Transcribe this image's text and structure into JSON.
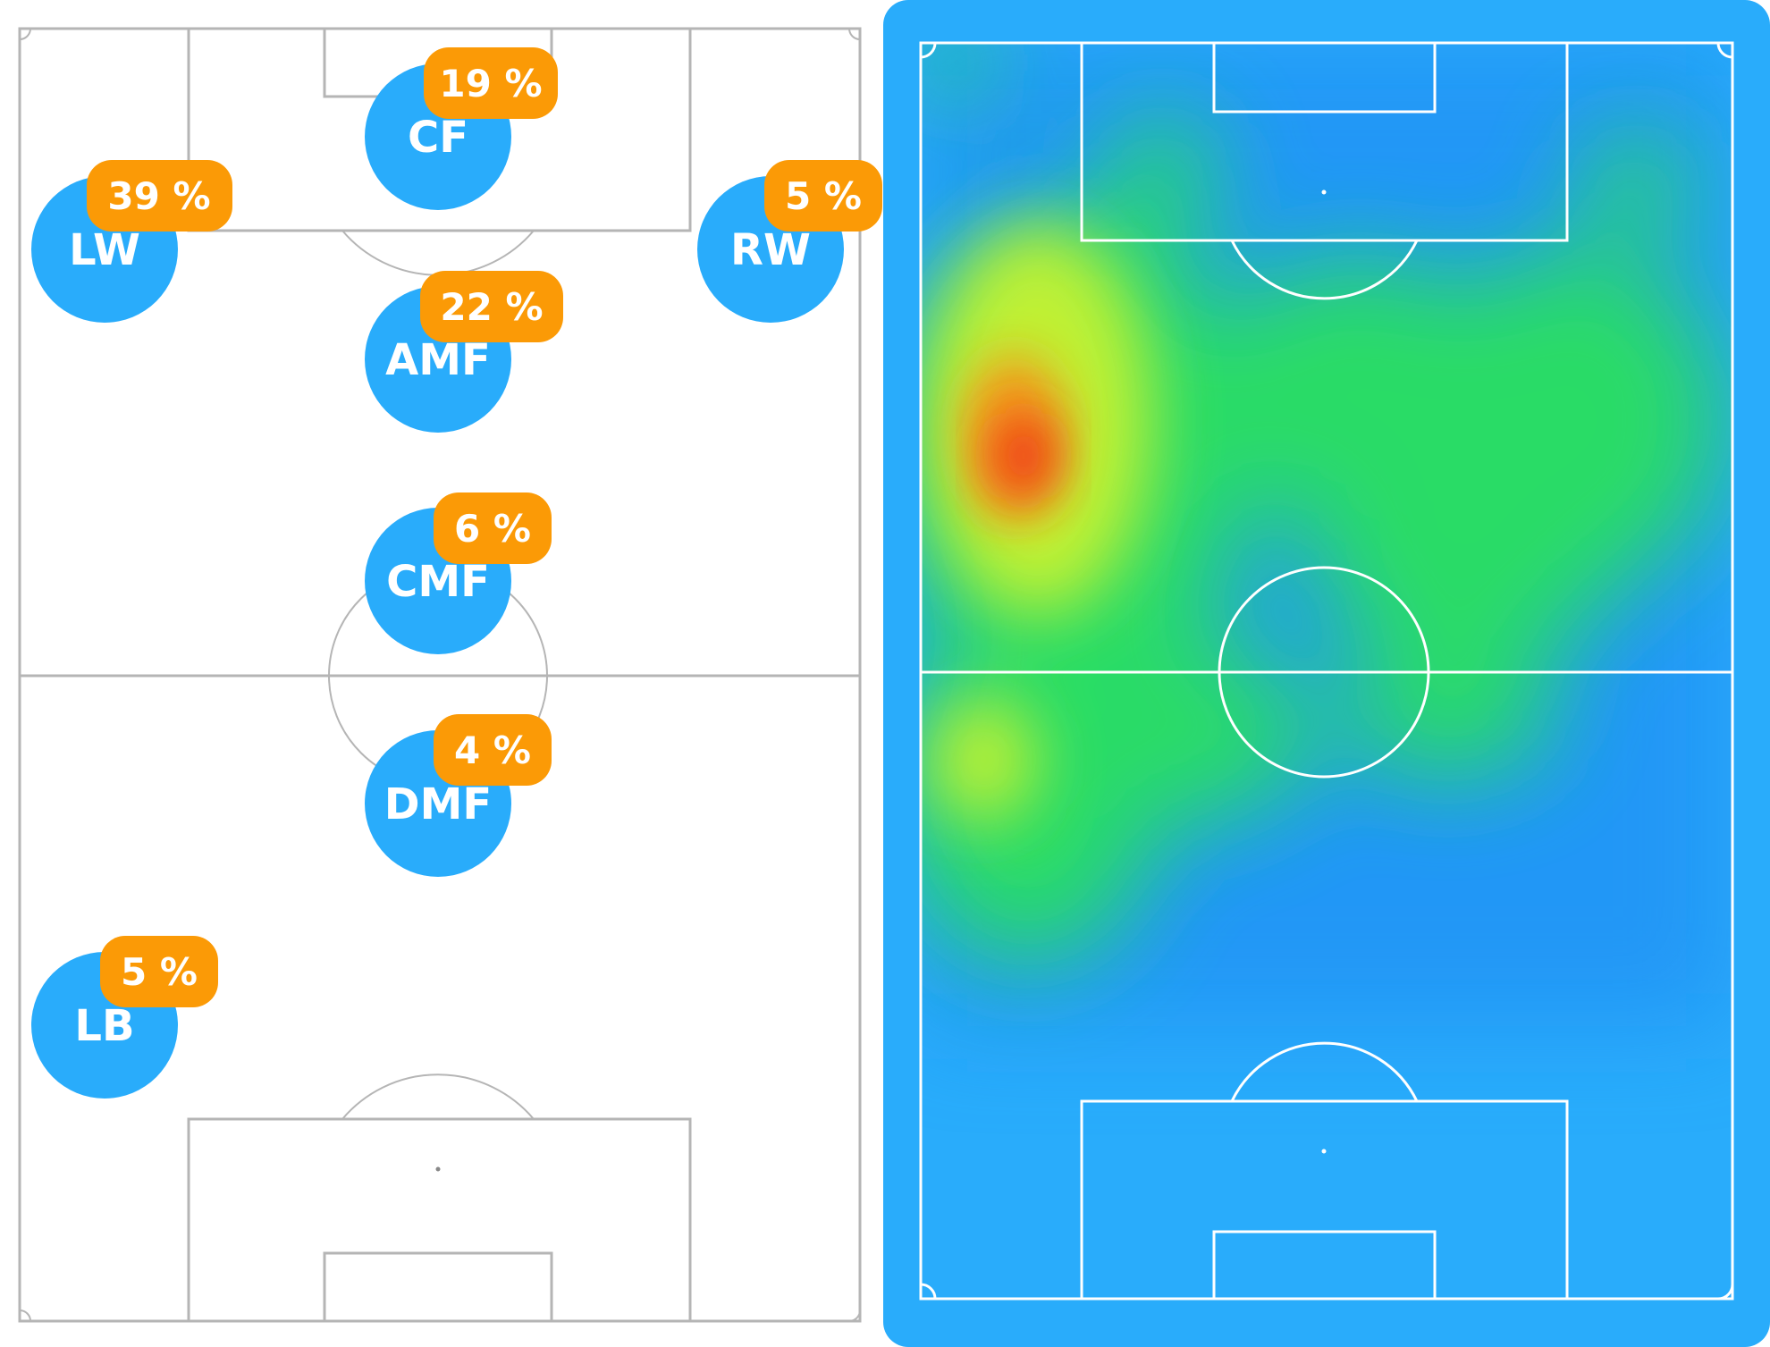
{
  "positions": [
    {
      "code": "CF",
      "percent": "19 %",
      "share": 19
    },
    {
      "code": "LW",
      "percent": "39 %",
      "share": 39
    },
    {
      "code": "RW",
      "percent": "5 %",
      "share": 5
    },
    {
      "code": "AMF",
      "percent": "22 %",
      "share": 22
    },
    {
      "code": "CMF",
      "percent": "6 %",
      "share": 6
    },
    {
      "code": "DMF",
      "percent": "4 %",
      "share": 4
    },
    {
      "code": "LB",
      "percent": "5 %",
      "share": 5
    }
  ],
  "colors": {
    "position_circle": "#29acfb",
    "percent_badge": "#fb9a06",
    "heatmap_panel": "#29acfb",
    "pitch_lines_left": "#b5b5b5",
    "pitch_lines_right": "#ffffff"
  }
}
